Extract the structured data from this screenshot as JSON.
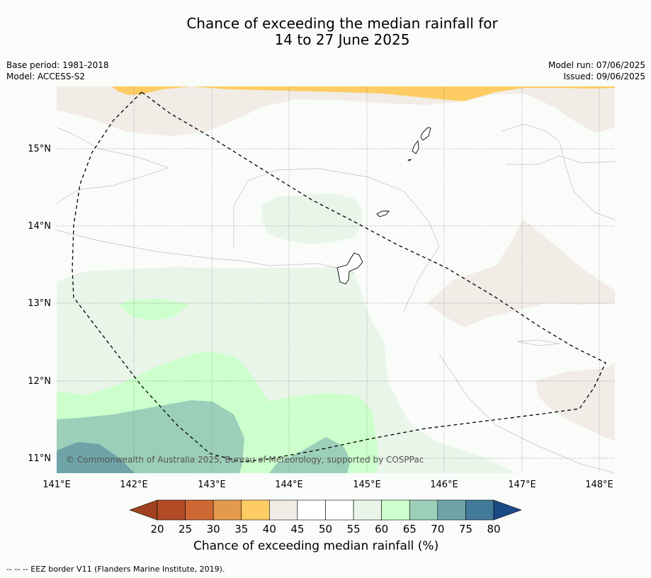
{
  "title": {
    "line1": "Chance of exceeding the median rainfall for",
    "line2": "14 to 27 June 2025"
  },
  "meta_left": {
    "base_period": "Base period: 1981-2018",
    "model": "Model: ACCESS-S2"
  },
  "meta_right": {
    "model_run": "Model run: 07/06/2025",
    "issued": "Issued: 09/06/2025"
  },
  "map": {
    "lat_labels": [
      "15°N",
      "14°N",
      "13°N",
      "12°N",
      "11°N"
    ],
    "lon_labels": [
      "141°E",
      "142°E",
      "143°E",
      "144°E",
      "145°E",
      "146°E",
      "147°E",
      "148°E"
    ],
    "copyright": "© Commonwealth of Australia 2025, Bureau of Meteorology, supported by COSPPac",
    "colors": {
      "c40_45": "#f1ece6",
      "c35_40": "#fdcc62",
      "c55_60": "#e9f5e9",
      "c60_65": "#ccffcc",
      "c65_70": "#9ccfba",
      "c70_75": "#6ea4a8",
      "background": "#fafcfa"
    }
  },
  "colorbar": {
    "ticks": [
      "20",
      "25",
      "30",
      "35",
      "40",
      "45",
      "50",
      "55",
      "60",
      "65",
      "70",
      "75",
      "80"
    ],
    "colors": [
      "#b44b27",
      "#cd6733",
      "#e49a4c",
      "#fdcc62",
      "#f1ece6",
      "#ffffff",
      "#ffffff",
      "#e9f5e9",
      "#ccffcc",
      "#9ccfba",
      "#6ea4a8",
      "#427a9a"
    ],
    "extend_low": "#a0421f",
    "extend_high": "#1c4a86",
    "label": "Chance of exceeding median rainfall (%)"
  },
  "footer": "--  --  -- EEZ border V11 (Flanders Marine Institute, 2019)."
}
